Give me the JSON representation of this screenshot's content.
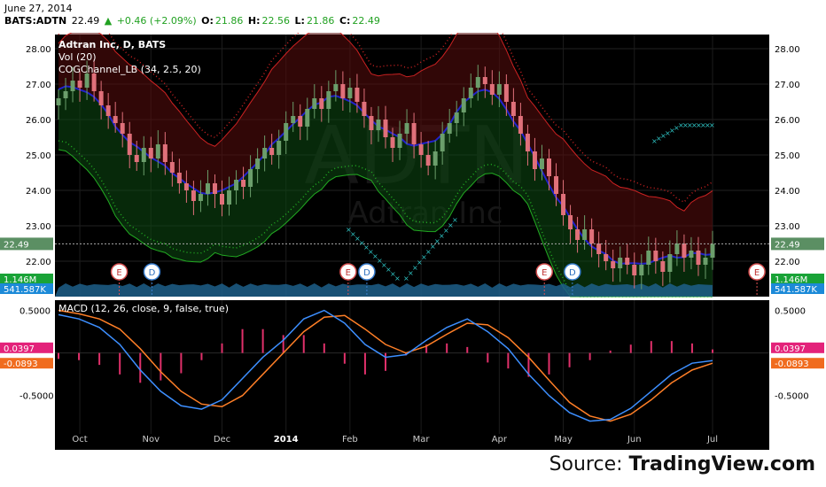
{
  "header": {
    "date": "June 27, 2014",
    "symbol": "BATS:ADTN",
    "last": "22.49",
    "change": "+0.46 (+2.09%)",
    "o_label": "O:",
    "o": "21.86",
    "h_label": "H:",
    "h": "22.56",
    "l_label": "L:",
    "l": "21.86",
    "c_label": "C:",
    "c": "22.49"
  },
  "overlay": {
    "title": "Adtran Inc, D, BATS",
    "vol": "Vol (20)",
    "cog": "COGChannel_LB (34, 2.5, 20)",
    "macd": "MACD (12, 26, close, 9, false, true)",
    "watermark_ticker": "ADTN",
    "watermark_name": "Adtran Inc"
  },
  "source": {
    "prefix": "Source:",
    "brand": "TradingView.com"
  },
  "colors": {
    "background": "#000000",
    "candle_up": "#6b9e6b",
    "candle_down": "#e0707a",
    "cog_mid": "#2222cc",
    "cog_upper": "#cc2222",
    "cog_lower": "#22aa22",
    "volume": "#1d5f8a",
    "macd_line": "#3d8fff",
    "signal_line": "#ff7f27",
    "histogram": "#e0306a",
    "markers": "#2ec4c4"
  },
  "chart_data": [
    {
      "type": "candlestick",
      "title": "Adtran Inc, D, BATS",
      "x_labels": [
        "Oct",
        "Nov",
        "Dec",
        "2014",
        "Feb",
        "Mar",
        "Apr",
        "May",
        "Jun",
        "Jul"
      ],
      "y_ticks": [
        "28.00",
        "27.00",
        "26.00",
        "25.00",
        "24.00",
        "23.00",
        "22.00"
      ],
      "ylim": [
        21.0,
        28.4
      ],
      "last_price_label": "22.49",
      "close": [
        26.6,
        26.8,
        27.1,
        26.9,
        27.3,
        26.8,
        26.4,
        26.1,
        25.9,
        25.6,
        25.0,
        24.8,
        25.2,
        24.9,
        25.3,
        24.8,
        24.5,
        24.2,
        24.0,
        23.7,
        23.9,
        24.2,
        23.9,
        23.6,
        24.0,
        24.3,
        24.1,
        24.6,
        24.9,
        25.2,
        25.0,
        25.4,
        25.9,
        26.1,
        25.8,
        26.3,
        26.6,
        26.3,
        26.8,
        27.0,
        26.6,
        26.9,
        26.5,
        26.1,
        25.7,
        26.0,
        25.5,
        25.2,
        25.6,
        25.9,
        25.3,
        25.0,
        24.7,
        25.1,
        25.6,
        25.9,
        26.2,
        26.6,
        26.9,
        27.2,
        27.0,
        26.7,
        27.0,
        26.5,
        26.1,
        25.6,
        25.1,
        24.6,
        24.9,
        24.4,
        23.9,
        23.3,
        22.9,
        22.6,
        22.9,
        22.5,
        22.2,
        22.0,
        21.8,
        22.1,
        21.9,
        21.6,
        21.9,
        22.3,
        22.0,
        21.7,
        22.2,
        22.5,
        22.1,
        22.3,
        21.9,
        22.1,
        22.49
      ],
      "volume_label": "541.587K",
      "volume_avg_label": "1.146M",
      "events": [
        {
          "label": "E",
          "x": "2013-10-16"
        },
        {
          "label": "D",
          "x": "2013-10-30"
        },
        {
          "label": "E",
          "x": "2014-01-22"
        },
        {
          "label": "D",
          "x": "2014-01-30"
        },
        {
          "label": "E",
          "x": "2014-04-16"
        },
        {
          "label": "D",
          "x": "2014-04-28"
        },
        {
          "label": "E",
          "x": "2014-07-16"
        }
      ]
    },
    {
      "type": "line",
      "title": "MACD (12, 26, close, 9, false, true)",
      "y_ticks": [
        "0.5000",
        "-0.5000"
      ],
      "ylim": [
        -0.95,
        0.62
      ],
      "series": [
        {
          "name": "MACD",
          "values": [
            0.45,
            0.4,
            0.3,
            0.1,
            -0.2,
            -0.45,
            -0.62,
            -0.66,
            -0.55,
            -0.3,
            -0.05,
            0.15,
            0.4,
            0.5,
            0.35,
            0.1,
            -0.05,
            -0.02,
            0.15,
            0.3,
            0.4,
            0.25,
            0.05,
            -0.25,
            -0.5,
            -0.7,
            -0.8,
            -0.78,
            -0.65,
            -0.45,
            -0.25,
            -0.12,
            -0.09
          ]
        },
        {
          "name": "Signal",
          "values": [
            0.5,
            0.46,
            0.4,
            0.28,
            0.05,
            -0.22,
            -0.45,
            -0.6,
            -0.63,
            -0.5,
            -0.25,
            0.0,
            0.25,
            0.42,
            0.44,
            0.28,
            0.1,
            0.0,
            0.08,
            0.22,
            0.35,
            0.33,
            0.18,
            -0.05,
            -0.32,
            -0.58,
            -0.74,
            -0.8,
            -0.72,
            -0.55,
            -0.35,
            -0.2,
            -0.12
          ]
        }
      ],
      "macd_label": "0.0397",
      "signal_label": "-0.0893"
    }
  ]
}
